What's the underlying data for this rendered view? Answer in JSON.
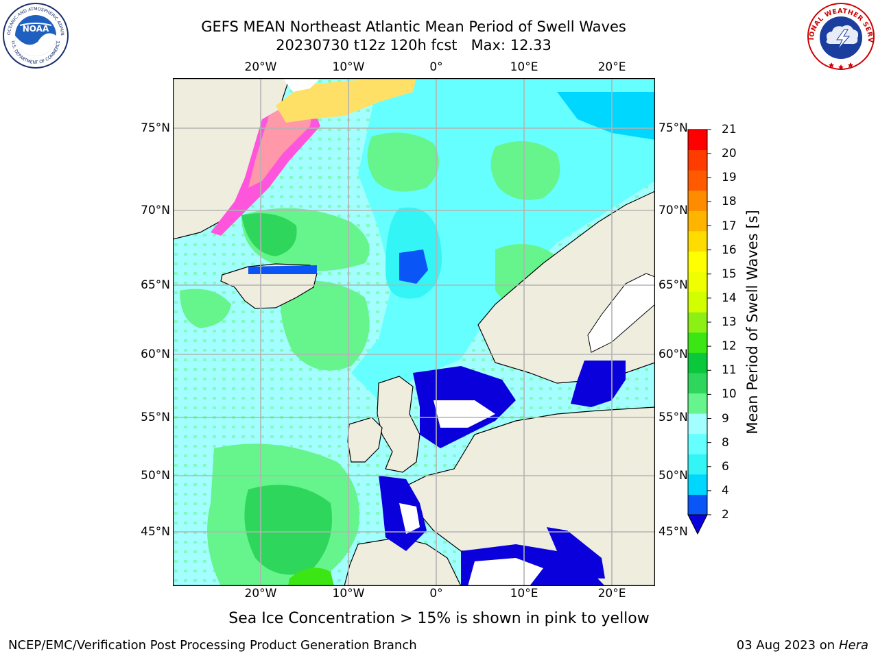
{
  "title": {
    "line1": "GEFS MEAN Northeast Atlantic Mean Period of Swell Waves",
    "line2": "20230730 t12z 120h fcst   Max: 12.33"
  },
  "map": {
    "lon_labels": [
      "20°W",
      "10°W",
      "0°",
      "10°E",
      "20°E"
    ],
    "lat_labels": [
      "75°N",
      "70°N",
      "65°N",
      "60°N",
      "55°N",
      "50°N",
      "45°N"
    ],
    "colors": {
      "land": "#EFEDDE",
      "grid": "#B3B3B3",
      "coast": "#000000",
      "ice_pink": "#FF55DD",
      "ice_peach": "#FF99AA",
      "ice_yellow": "#FFE066"
    },
    "note": "Sea Ice Concentration > 15% is shown in pink to yellow"
  },
  "colorbar": {
    "label": "Mean Period of Swell Waves [s]",
    "ticks": [
      "21",
      "20",
      "19",
      "18",
      "17",
      "16",
      "15",
      "14",
      "13",
      "12",
      "11",
      "10",
      "9",
      "8",
      "6",
      "4",
      "2"
    ],
    "colors_bottom_to_top": [
      "#0A55F5",
      "#00D7FF",
      "#33F5F5",
      "#66FFFF",
      "#A3FFFF",
      "#66F58C",
      "#2ED65C",
      "#0AC83C",
      "#3CE614",
      "#8CF014",
      "#D2FF00",
      "#F0FF00",
      "#FFFF00",
      "#FFDC00",
      "#FFB400",
      "#FF8C00",
      "#FF5A00",
      "#FF3C00",
      "#FF0000"
    ],
    "extend_color": "#0A00DC"
  },
  "logos": {
    "noaa_word": "NOAA",
    "noaa_ring": "NATIONAL OCEANIC AND ATMOSPHERIC ADMINISTRATION",
    "noaa_ring_bottom": "U.S. DEPARTMENT OF COMMERCE",
    "nws_ring": "NATIONAL WEATHER SERVICE"
  },
  "credits": {
    "left": "NCEP/EMC/Verification Post Processing Product Generation Branch",
    "right_date": "03 Aug 2023 on",
    "right_machine": "Hera"
  }
}
